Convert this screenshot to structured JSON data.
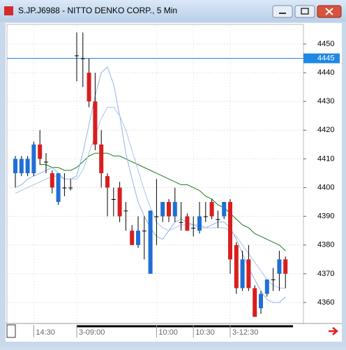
{
  "window_title": "S.JP.J6988 - NITTO DENKO CORP., 5 Min",
  "chart_data": {
    "type": "candlestick",
    "categories": [
      null,
      null,
      null,
      "14:30",
      null,
      null,
      null,
      null,
      null,
      null,
      "3-09:00",
      null,
      null,
      null,
      null,
      null,
      null,
      null,
      null,
      null,
      null,
      null,
      null,
      "10:00",
      null,
      null,
      null,
      null,
      null,
      "10:30",
      null,
      null,
      null,
      null,
      null,
      "3-12:30",
      null,
      null,
      null,
      null,
      null,
      null,
      null,
      null,
      null
    ],
    "open": [
      4405,
      4405,
      4405,
      4405,
      4415,
      4409,
      4405,
      4395,
      4400,
      4400,
      4446,
      4445,
      4440,
      4430,
      4415,
      4404,
      4396,
      4400,
      4392,
      4385,
      4380,
      4385,
      4370,
      4390,
      4390,
      4395,
      4390,
      4388,
      4390,
      4386,
      4385,
      4390,
      4395,
      4389,
      4390,
      4395,
      4380,
      4365,
      4375,
      4365,
      4358,
      4363,
      4368,
      4370,
      4375
    ],
    "high": [
      4411,
      4411,
      4411,
      4416,
      4420,
      4412,
      4406,
      4405,
      4405,
      4403,
      4454,
      4454,
      4445,
      4440,
      4420,
      4405,
      4400,
      4402,
      4395,
      4387,
      4390,
      4390,
      4392,
      4403,
      4395,
      4396,
      4400,
      4395,
      4391,
      4390,
      4395,
      4395,
      4396,
      4392,
      4395,
      4396,
      4381,
      4378,
      4380,
      4366,
      4364,
      4368,
      4372,
      4378,
      4376
    ],
    "low": [
      4400,
      4404,
      4404,
      4404,
      4408,
      4405,
      4398,
      4394,
      4397,
      4399,
      4437,
      4435,
      4428,
      4413,
      4400,
      4390,
      4390,
      4388,
      4385,
      4380,
      4379,
      4375,
      4370,
      4380,
      4388,
      4388,
      4388,
      4385,
      4385,
      4383,
      4384,
      4388,
      4389,
      4386,
      4389,
      4370,
      4363,
      4364,
      4364,
      4355,
      4356,
      4362,
      4364,
      4364,
      4365
    ],
    "close": [
      4410,
      4410,
      4410,
      4415,
      4410,
      4409,
      4400,
      4405,
      4400,
      4400,
      4446,
      4445,
      4430,
      4415,
      4405,
      4400,
      4396,
      4390,
      4392,
      4380,
      4385,
      4385,
      4392,
      4390,
      4395,
      4390,
      4395,
      4388,
      4385,
      4386,
      4390,
      4390,
      4390,
      4389,
      4395,
      4375,
      4365,
      4375,
      4365,
      4355,
      4363,
      4368,
      4368,
      4375,
      4370
    ],
    "up_color": "#1f6fd6",
    "down_color": "#d81e1e",
    "series": [
      {
        "color": "#1a7a1a",
        "values": [
          null,
          null,
          null,
          null,
          4408,
          4408,
          4407,
          4407,
          4406,
          4406,
          4407,
          4409,
          4411,
          4412,
          4412,
          4412,
          4411,
          4411,
          4410,
          4409,
          4408,
          4407,
          4406,
          4405,
          4404,
          4403,
          4402,
          4401,
          4401,
          4400,
          4399,
          4397,
          4396,
          4394,
          4393,
          4391,
          4389,
          4387,
          4386,
          4384,
          4383,
          4382,
          4381,
          4380,
          4378
        ]
      },
      {
        "color": "#8fb4e8",
        "values": [
          4400,
          4401,
          4403,
          4404,
          4405,
          4406,
          4407,
          4405,
          4403,
          4403,
          4404,
          4412,
          4422,
          4432,
          4440,
          4442,
          4436,
          4425,
          4412,
          4403,
          4395,
          4390,
          4386,
          4383,
          4382,
          4385,
          4388,
          4389,
          4388,
          4387,
          4387,
          4386,
          4387,
          4388,
          4388,
          4386,
          4382,
          4377,
          4372,
          4368,
          4364,
          4361,
          4360,
          4360,
          4362
        ]
      },
      {
        "color": "#a9c4ea",
        "values": [
          4398,
          4399,
          4400,
          4401,
          4402,
          4403,
          4404,
          4404,
          4403,
          4403,
          4403,
          4406,
          4412,
          4418,
          4424,
          4428,
          4428,
          4425,
          4420,
          4413,
          4406,
          4399,
          4393,
          4388,
          4386,
          4385,
          4386,
          4387,
          4387,
          4387,
          4386,
          4386,
          4386,
          4386,
          4386,
          4385,
          4383,
          4380,
          4377,
          4374,
          4371,
          4368,
          4366,
          4365,
          4365
        ]
      }
    ],
    "price_line": 4445,
    "price_line_color": "#1e88e5",
    "ylim": [
      4352.7,
      4456.8
    ],
    "yticks": [
      4360,
      4370,
      4380,
      4390,
      4400,
      4410,
      4420,
      4430,
      4440,
      4450
    ],
    "grid": true
  }
}
